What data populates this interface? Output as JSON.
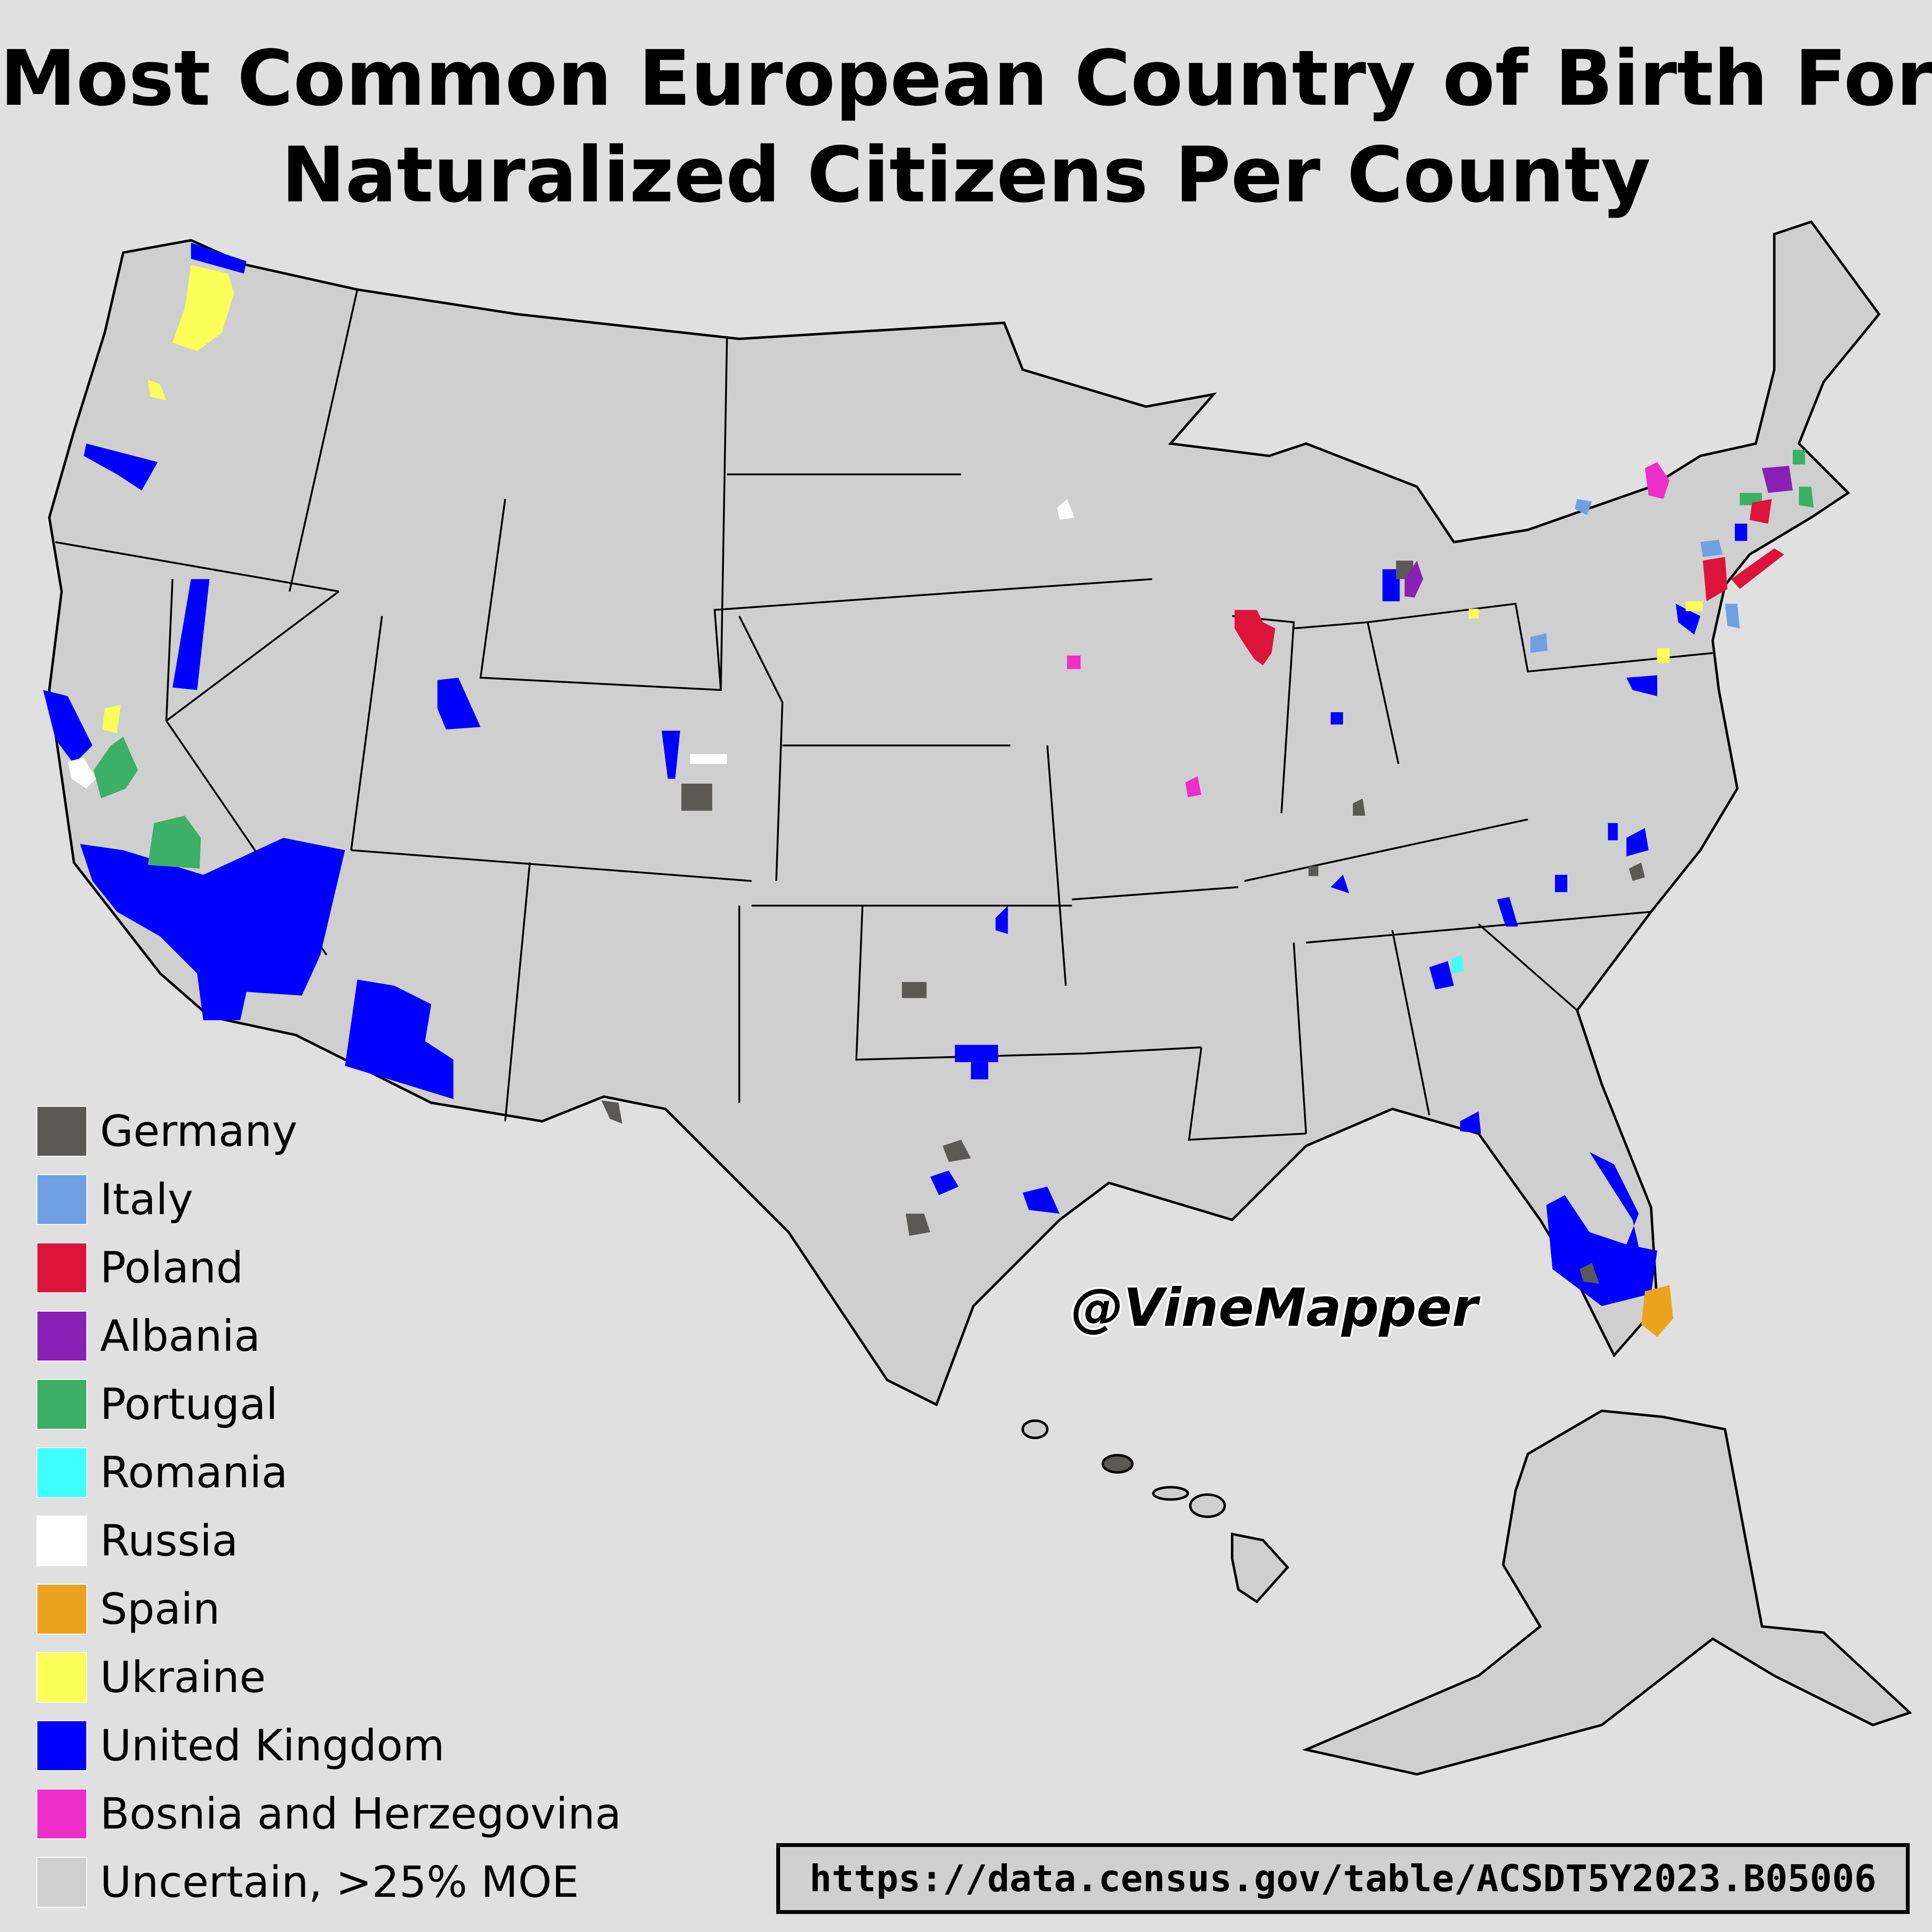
{
  "title": {
    "line1": "Most Common European Country of Birth For",
    "line2": "Naturalized Citizens Per County"
  },
  "legend": {
    "items": [
      {
        "label": "Germany",
        "color": "#5a5955"
      },
      {
        "label": "Italy",
        "color": "#6fa0e3"
      },
      {
        "label": "Poland",
        "color": "#dc143c"
      },
      {
        "label": "Albania",
        "color": "#8a20b5"
      },
      {
        "label": "Portugal",
        "color": "#3cb066"
      },
      {
        "label": "Romania",
        "color": "#40ffff"
      },
      {
        "label": "Russia",
        "color": "#ffffff"
      },
      {
        "label": "Spain",
        "color": "#eba31f"
      },
      {
        "label": "Ukraine",
        "color": "#fbff57"
      },
      {
        "label": "United Kingdom",
        "color": "#0000ff"
      },
      {
        "label": "Bosnia and Herzegovina",
        "color": "#ee2ecb"
      },
      {
        "label": "Uncertain, >25% MOE",
        "color": "#cfcfcf"
      }
    ]
  },
  "watermark": "@VineMapper",
  "source": "https://data.census.gov/table/ACSDT5Y2023.B05006",
  "colors": {
    "background": "#e0e0e0",
    "county_fill": "#cfcfcf",
    "county_border": "#ffffff",
    "state_border": "#000000"
  }
}
